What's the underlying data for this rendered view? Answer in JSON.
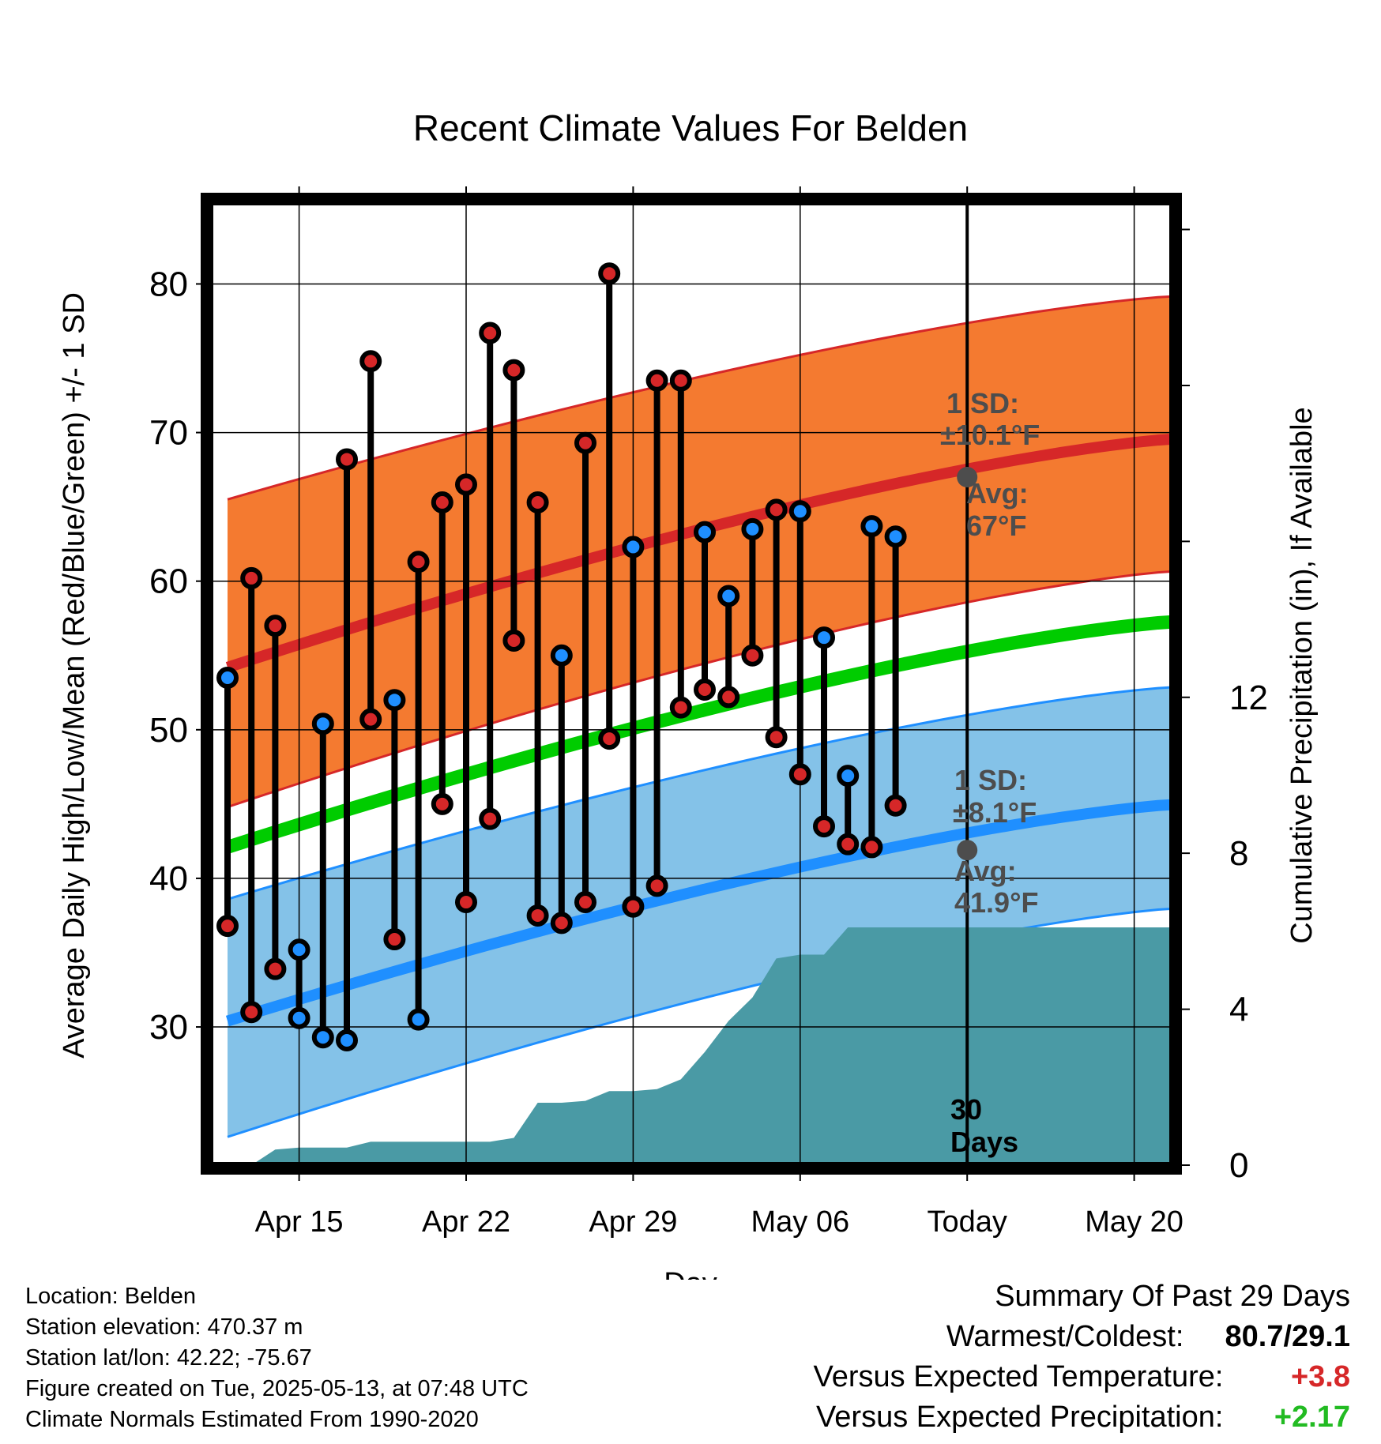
{
  "chart_data": {
    "type": "line",
    "title": "Recent Climate Values For Belden",
    "xlabel": "Day",
    "ylabel_left": "Average Daily High/Low/Mean (Red/Blue/Green) +/- 1 SD",
    "ylabel_right": "Cumulative Precipitation (in), If Available",
    "x_tick_labels": [
      "Apr 15",
      "Apr 22",
      "Apr 29",
      "May 06",
      "Today",
      "May 20"
    ],
    "y_left_ticks": [
      "30",
      "40",
      "50",
      "60",
      "70",
      "80"
    ],
    "y_right_ticks": [
      "0",
      "4",
      "8",
      "12"
    ],
    "ylim_left": [
      20.7,
      85.5
    ],
    "ylim_right": [
      0,
      24.7
    ],
    "days": [
      "Apr 12",
      "Apr 13",
      "Apr 14",
      "Apr 15",
      "Apr 16",
      "Apr 17",
      "Apr 18",
      "Apr 19",
      "Apr 20",
      "Apr 21",
      "Apr 22",
      "Apr 23",
      "Apr 24",
      "Apr 25",
      "Apr 26",
      "Apr 27",
      "Apr 28",
      "Apr 29",
      "Apr 30",
      "May 01",
      "May 02",
      "May 03",
      "May 04",
      "May 05",
      "May 06",
      "May 07",
      "May 08",
      "May 09",
      "May 10",
      "May 11",
      "May 12",
      "May 13",
      "May 14",
      "May 15",
      "May 16",
      "May 17",
      "May 18",
      "May 19",
      "May 20",
      "May 21",
      "May 22"
    ],
    "highs": [
      53.5,
      60.2,
      57.0,
      35.2,
      50.4,
      68.2,
      74.8,
      52.0,
      61.3,
      65.3,
      66.5,
      76.7,
      74.2,
      65.3,
      55.0,
      69.3,
      80.7,
      62.3,
      73.5,
      73.5,
      63.3,
      59.0,
      63.5,
      64.8,
      64.7,
      56.2,
      46.9,
      63.7,
      63.0
    ],
    "lows": [
      36.8,
      31.0,
      33.9,
      30.6,
      29.3,
      29.1,
      50.7,
      35.9,
      30.5,
      45.0,
      38.4,
      44.0,
      56.0,
      37.5,
      37.0,
      38.4,
      49.4,
      38.1,
      39.5,
      51.5,
      52.7,
      52.2,
      55.0,
      49.5,
      47.0,
      43.5,
      42.3,
      42.1,
      44.9
    ],
    "high_color_warm": "#d62728",
    "low_color_cold": "#1f8fff",
    "normal_high_avg": [
      54.2,
      69.6
    ],
    "normal_high_sd_band": [
      [
        44.8,
        65.5
      ],
      [
        60.7,
        79.2
      ]
    ],
    "normal_low_avg": [
      30.4,
      45.0
    ],
    "normal_low_sd_band": [
      [
        22.6,
        38.6
      ],
      [
        38.0,
        52.9
      ]
    ],
    "normal_mean": [
      42.1,
      57.3
    ],
    "cumulative_precip": [
      0,
      0,
      0.4,
      0.45,
      0.45,
      0.45,
      0.6,
      0.6,
      0.6,
      0.6,
      0.6,
      0.6,
      0.7,
      1.6,
      1.6,
      1.65,
      1.9,
      1.9,
      1.95,
      2.2,
      2.9,
      3.7,
      4.3,
      5.3,
      5.4,
      5.4,
      6.1,
      6.1,
      6.1,
      6.1,
      6.1,
      6.1,
      6.1,
      6.1,
      6.1,
      6.1,
      6.1,
      6.1,
      6.1,
      6.1,
      6.1
    ],
    "today_high_sd_label": [
      "1 SD:",
      "±10.1°F"
    ],
    "today_high_avg_label": [
      "Avg:",
      "67°F"
    ],
    "today_high_avg": 67.0,
    "today_low_sd_label": [
      "1 SD:",
      "±8.1°F"
    ],
    "today_low_avg_label": [
      "Avg:",
      "41.9°F"
    ],
    "today_low_avg": 41.9,
    "today_window_label": [
      "30",
      "Days"
    ],
    "colors": {
      "high_band": "#f47a30",
      "high_avg_line": "#d62728",
      "low_band": "#84c2e8",
      "low_avg_line": "#1f8fff",
      "mean_line": "#00cc00",
      "precip_fill": "#4a9aa5",
      "annotation_text": "#4d4d4d"
    }
  },
  "footer": {
    "location": "Location: Belden",
    "elevation": "Station elevation: 470.37 m",
    "latlon": "Station lat/lon: 42.22; -75.67",
    "created": "Figure created on Tue, 2025-05-13, at 07:48 UTC",
    "normals": "Climate Normals Estimated From 1990-2020"
  },
  "summary": {
    "heading": "Summary Of Past 29 Days",
    "warm_cold_label": "Warmest/Coldest:",
    "warm_cold_value": "80.7/29.1",
    "temp_label": "Versus Expected Temperature:",
    "temp_value": "+3.8",
    "temp_color": "#d62728",
    "precip_label": "Versus Expected Precipitation:",
    "precip_value": "+2.17",
    "precip_color": "#22bb22"
  }
}
